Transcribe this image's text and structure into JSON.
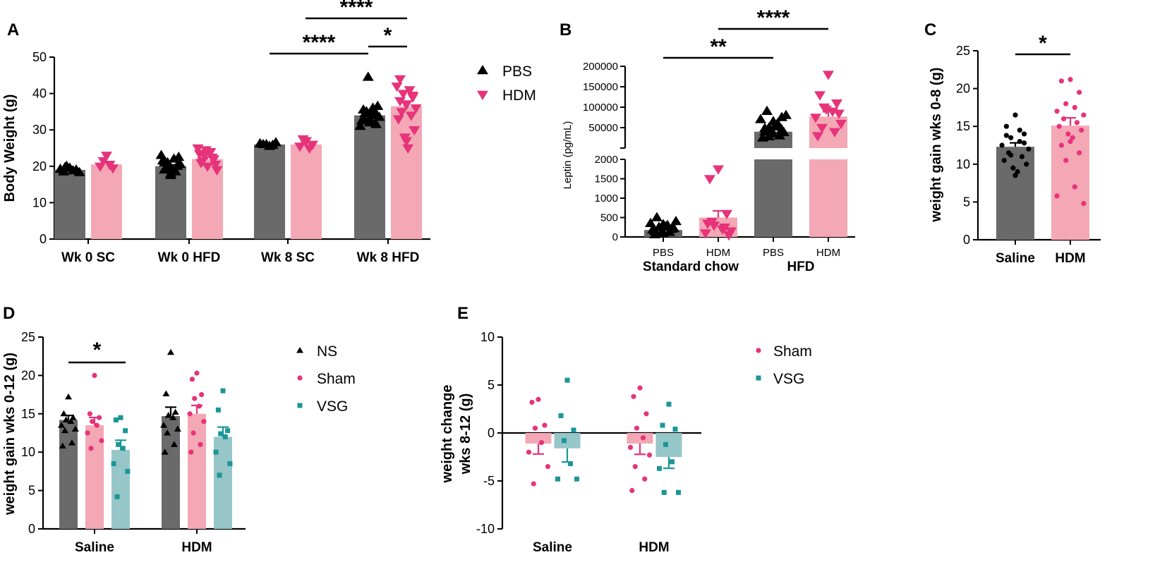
{
  "colors": {
    "grey_bar": "#6b6a6a",
    "pink_bar": "#f4a7b4",
    "teal_bar": "#97c6c9",
    "black_point": "#000000",
    "pink_point": "#e6337a",
    "teal_point": "#1c9696"
  },
  "chart_data": [
    {
      "panel": "A",
      "type": "bar",
      "ylabel": "Body Weight (g)",
      "ylim": [
        0,
        50
      ],
      "yticks": [
        0,
        10,
        20,
        30,
        40,
        50
      ],
      "categories": [
        "Wk 0 SC",
        "Wk 0 HFD",
        "Wk 8 SC",
        "Wk 8 HFD"
      ],
      "series": [
        {
          "name": "PBS",
          "marker": "triangle-up",
          "values": [
            19,
            20,
            26,
            34
          ],
          "points": [
            [
              19.5,
              18.5,
              19,
              20,
              18.8,
              19.2,
              18.3,
              19.7
            ],
            [
              18,
              19,
              20,
              21,
              22,
              23,
              20.5,
              19.5,
              18.5,
              21.5,
              22.5,
              20,
              19,
              17.5,
              21,
              20
            ],
            [
              25.5,
              26,
              26.5,
              26,
              25.8,
              26.2
            ],
            [
              32,
              33,
              34,
              35,
              36,
              31,
              33.5,
              34.5,
              35,
              32.5,
              36.5,
              44.5,
              34,
              33,
              35.5,
              31.5
            ]
          ]
        },
        {
          "name": "HDM",
          "marker": "triangle-down",
          "values": [
            20.5,
            22,
            26,
            36.5
          ],
          "points": [
            [
              23,
              20,
              19.5,
              21.5,
              20.5
            ],
            [
              20,
              21,
              22,
              23,
              24,
              25,
              19,
              21.5,
              22.5,
              23.5,
              20.5,
              24.5
            ],
            [
              27,
              25.5,
              26,
              27.5,
              25
            ],
            [
              37,
              38,
              39,
              40,
              41,
              42,
              36,
              35,
              34,
              33,
              30,
              28,
              25,
              27,
              44,
              39.5
            ]
          ]
        }
      ],
      "legend": [
        "PBS",
        "HDM"
      ],
      "significance": [
        {
          "from": "Wk 8 SC PBS",
          "to": "Wk 8 HFD PBS",
          "label": "****"
        },
        {
          "from": "Wk 8 HFD PBS",
          "to": "Wk 8 HFD HDM",
          "label": "*"
        },
        {
          "from": "Wk 8 SC HDM",
          "to": "Wk 8 HFD HDM",
          "label": "****"
        }
      ]
    },
    {
      "panel": "B",
      "type": "bar",
      "ylabel": "Leptin (pg/mL)",
      "y_axis_broken": true,
      "ylim_lower": [
        0,
        2000
      ],
      "yticks_lower": [
        0,
        500,
        1000,
        1500,
        2000
      ],
      "ylim_upper": [
        0,
        200000
      ],
      "yticks_upper": [
        50000,
        100000,
        150000,
        200000
      ],
      "categories": [
        "PBS",
        "HDM",
        "PBS",
        "HDM"
      ],
      "groups": [
        "Standard chow",
        "HFD"
      ],
      "values": [
        180,
        500,
        40000,
        77000
      ],
      "points": [
        [
          100,
          150,
          200,
          250,
          300,
          350,
          400,
          500,
          120,
          180,
          220,
          80,
          260,
          320,
          60
        ],
        [
          1750,
          1500,
          600,
          300,
          200,
          100,
          150,
          400,
          250,
          350,
          50
        ],
        [
          35000,
          40000,
          45000,
          50000,
          60000,
          70000,
          80000,
          90000,
          30000,
          25000,
          38000,
          42000,
          55000,
          65000,
          48000,
          75000,
          28000
        ],
        [
          180000,
          130000,
          110000,
          100000,
          90000,
          75000,
          60000,
          50000,
          40000,
          30000,
          85000,
          95000
        ]
      ],
      "point_colors": [
        "black",
        "pink",
        "black",
        "pink"
      ],
      "markers": [
        "triangle-up",
        "triangle-down",
        "triangle-up",
        "triangle-down"
      ],
      "significance": [
        {
          "from": "Standard chow PBS",
          "to": "HFD PBS",
          "label": "**"
        },
        {
          "from": "Standard chow HDM",
          "to": "HFD HDM",
          "label": "****"
        }
      ]
    },
    {
      "panel": "C",
      "type": "bar",
      "ylabel": "weight gain wks 0-8 (g)",
      "ylim": [
        0,
        25
      ],
      "yticks": [
        0,
        5,
        10,
        15,
        20,
        25
      ],
      "categories": [
        "Saline",
        "HDM"
      ],
      "values": [
        12.3,
        15.1
      ],
      "points": [
        [
          16.5,
          15,
          14,
          13.5,
          13,
          12.5,
          12,
          11.5,
          11,
          10.5,
          10,
          9.5,
          9,
          8.5,
          13.8,
          12.8,
          11.2,
          14.5
        ],
        [
          21.2,
          21,
          19.5,
          18,
          17.5,
          17,
          16.5,
          16,
          15.5,
          15,
          14.5,
          14,
          13.5,
          13,
          12.5,
          11.5,
          10.5,
          7,
          5.8,
          4.8
        ]
      ],
      "significance": [
        {
          "from": "Saline",
          "to": "HDM",
          "label": "*"
        }
      ]
    },
    {
      "panel": "D",
      "type": "bar",
      "ylabel": "weight gain wks 0-12 (g)",
      "ylim": [
        0,
        25
      ],
      "yticks": [
        0,
        5,
        10,
        15,
        20,
        25
      ],
      "categories": [
        "Saline",
        "HDM"
      ],
      "series": [
        {
          "name": "NS",
          "marker": "triangle-up",
          "values": [
            14.2,
            14.7
          ],
          "points": [
            [
              17.2,
              15,
              14.5,
              14.2,
              14,
              13.5,
              13,
              12.8,
              11.2,
              10.8
            ],
            [
              23,
              17.6,
              15.2,
              14.8,
              14.5,
              13.5,
              13,
              12.5,
              11,
              10
            ]
          ]
        },
        {
          "name": "Sham",
          "marker": "circle",
          "values": [
            13.5,
            15
          ],
          "points": [
            [
              20,
              15,
              14.5,
              14,
              13.5,
              12.5,
              11.5,
              10.5
            ],
            [
              20.3,
              19.5,
              17.5,
              17,
              16,
              15,
              14,
              12.5,
              11,
              10
            ]
          ]
        },
        {
          "name": "VSG",
          "marker": "square",
          "values": [
            10.3,
            12
          ],
          "points": [
            [
              14.5,
              14.2,
              12.8,
              11,
              10.5,
              8.5,
              7.5,
              4.2
            ],
            [
              18,
              15.5,
              12.8,
              12.4,
              12,
              10,
              8.5,
              7
            ]
          ]
        }
      ],
      "legend": [
        "NS",
        "Sham",
        "VSG"
      ],
      "significance": [
        {
          "from": "Saline NS",
          "to": "Saline VSG",
          "label": "*"
        }
      ]
    },
    {
      "panel": "E",
      "type": "bar",
      "ylabel": "weight change wks 8-12 (g)",
      "ylim": [
        -10,
        10
      ],
      "yticks": [
        -10,
        -5,
        0,
        5,
        10
      ],
      "categories": [
        "Saline",
        "HDM"
      ],
      "series": [
        {
          "name": "Sham",
          "marker": "circle",
          "values": [
            -1.1,
            -1.1
          ],
          "points": [
            [
              3.5,
              3.2,
              0.8,
              0.5,
              -1,
              -2,
              -3.5,
              -5.3
            ],
            [
              4.7,
              3.8,
              2,
              0.5,
              -0.5,
              -1.5,
              -2.3,
              -3.5,
              -4.8,
              -6
            ]
          ]
        },
        {
          "name": "VSG",
          "marker": "square",
          "values": [
            -1.6,
            -2.5
          ],
          "points": [
            [
              5.5,
              1.8,
              0.3,
              -0.8,
              -3.2,
              -4.8,
              -4.8
            ],
            [
              3,
              0.8,
              0.4,
              -1.2,
              -3,
              -3.7,
              -6.2,
              -6.2
            ]
          ]
        }
      ],
      "legend": [
        "Sham",
        "VSG"
      ]
    }
  ]
}
